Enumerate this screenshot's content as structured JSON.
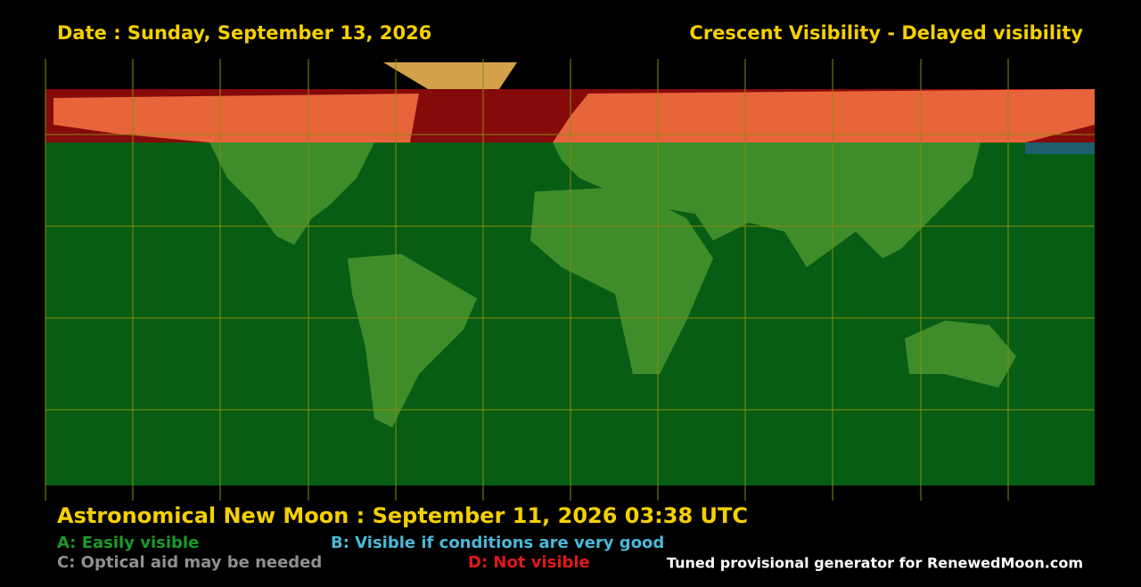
{
  "header": {
    "date": "Date : Sunday, September 13, 2026",
    "title": "Crescent Visibility - Delayed visibility"
  },
  "footer": {
    "new_moon": "Astronomical New Moon : September 11, 2026 03:38 UTC",
    "legend": [
      {
        "label": "A: Easily visible"
      },
      {
        "label": "B: Visible if conditions are very good"
      },
      {
        "label": "C: Optical aid may be needed"
      },
      {
        "label": "D: Not visible"
      }
    ],
    "credit": "Tuned provisional generator for RenewedMoon.com"
  }
}
